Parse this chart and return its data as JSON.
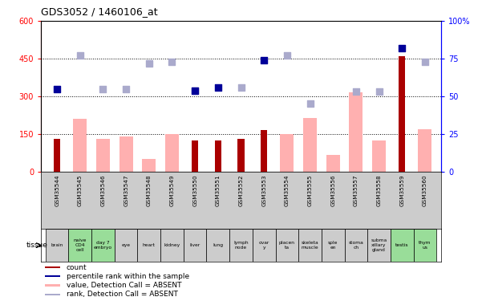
{
  "title": "GDS3052 / 1460106_at",
  "gsm_labels": [
    "GSM35544",
    "GSM35545",
    "GSM35546",
    "GSM35547",
    "GSM35548",
    "GSM35549",
    "GSM35550",
    "GSM35551",
    "GSM35552",
    "GSM35553",
    "GSM35554",
    "GSM35555",
    "GSM35556",
    "GSM35557",
    "GSM35558",
    "GSM35559",
    "GSM35560"
  ],
  "tissue_labels": [
    "brain",
    "naive\nCD4\ncell",
    "day 7\nembryо",
    "eye",
    "heart",
    "kidney",
    "liver",
    "lung",
    "lymph\nnode",
    "ovar\ny",
    "placen\nta",
    "skeleta\nmuscle",
    "sple\nen",
    "stoma\nch",
    "subma\nxillary\ngland",
    "testis",
    "thym\nus"
  ],
  "tissue_green": [
    false,
    true,
    true,
    false,
    false,
    false,
    false,
    false,
    false,
    false,
    false,
    false,
    false,
    false,
    false,
    true,
    true
  ],
  "count_values": [
    130,
    0,
    0,
    0,
    0,
    0,
    125,
    125,
    130,
    165,
    0,
    0,
    0,
    0,
    0,
    460,
    0
  ],
  "absent_value_bars": [
    0,
    210,
    130,
    140,
    50,
    150,
    0,
    0,
    0,
    0,
    150,
    215,
    65,
    315,
    125,
    0,
    170
  ],
  "percentile_rank_dark": [
    55,
    0,
    0,
    0,
    0,
    0,
    54,
    56,
    0,
    74,
    0,
    0,
    0,
    0,
    0,
    82,
    0
  ],
  "percentile_rank_absent": [
    0,
    77,
    55,
    55,
    72,
    73,
    54,
    0,
    56,
    0,
    77,
    45,
    0,
    53,
    53,
    0,
    73
  ],
  "ylim_left": [
    0,
    600
  ],
  "ylim_right": [
    0,
    100
  ],
  "yticks_left": [
    0,
    150,
    300,
    450,
    600
  ],
  "yticks_right": [
    0,
    25,
    50,
    75,
    100
  ],
  "bar_dark_red": "#aa0000",
  "bar_light_pink": "#ffb0b0",
  "dot_dark_blue": "#000099",
  "dot_light_blue": "#aaaacc",
  "tissue_green_color": "#99dd99",
  "tissue_gray_color": "#cccccc",
  "legend_items": [
    {
      "color": "#aa0000",
      "label": "count"
    },
    {
      "color": "#000099",
      "label": "percentile rank within the sample"
    },
    {
      "color": "#ffb0b0",
      "label": "value, Detection Call = ABSENT"
    },
    {
      "color": "#aaaacc",
      "label": "rank, Detection Call = ABSENT"
    }
  ]
}
